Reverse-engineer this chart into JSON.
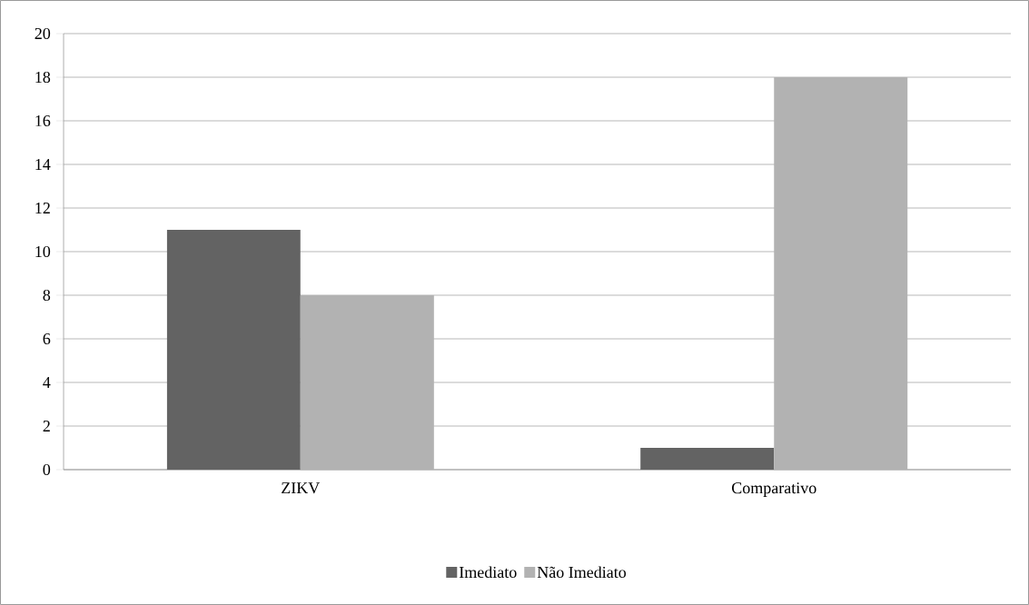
{
  "chart_data": {
    "type": "bar",
    "categories": [
      "ZIKV",
      "Comparativo"
    ],
    "series": [
      {
        "name": "Imediato",
        "color": "#636363",
        "values": [
          11,
          1
        ]
      },
      {
        "name": "Não Imediato",
        "color": "#b2b2b2",
        "values": [
          8,
          18
        ]
      }
    ],
    "ylim": [
      0,
      20
    ],
    "yticks": [
      0,
      2,
      4,
      6,
      8,
      10,
      12,
      14,
      16,
      18,
      20
    ],
    "grid": "y",
    "legend": "bottom"
  }
}
